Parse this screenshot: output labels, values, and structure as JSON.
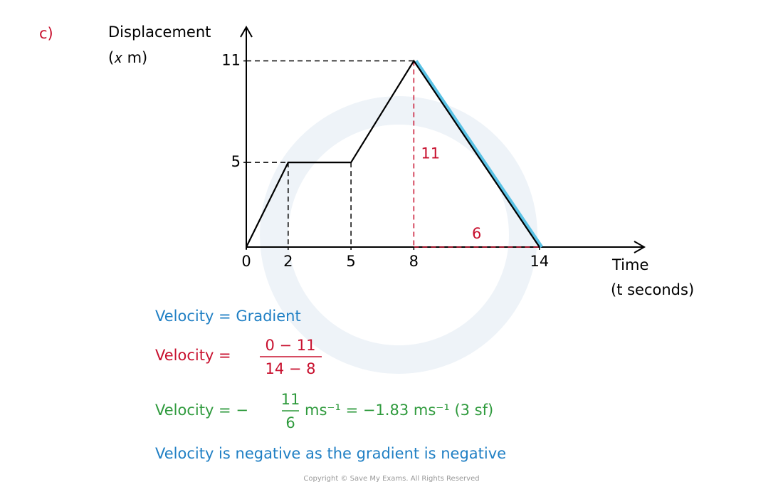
{
  "label": "c)",
  "chart_data": {
    "type": "line",
    "y_label": [
      "Displacement",
      "(𝑥 m)"
    ],
    "x_label": [
      "Time",
      "(t seconds)"
    ],
    "x": [
      0,
      2,
      5,
      8,
      14
    ],
    "series": [
      {
        "color": "#000000",
        "values": [
          0,
          5,
          5,
          11,
          0
        ]
      }
    ],
    "highlight_color": "#5bc3e6",
    "xlim": [
      0,
      19
    ],
    "ylim": [
      0,
      13
    ],
    "xticks": [
      0,
      2,
      5,
      8,
      14
    ],
    "yticks": [
      5,
      11
    ],
    "annotations": [
      {
        "text": "11",
        "color": "#c8102e"
      },
      {
        "text": "6",
        "color": "#c8102e"
      }
    ]
  },
  "working": [
    {
      "text": "Velocity = Gradient",
      "color": "#1f7fc4"
    },
    {
      "lhs": "Velocity =",
      "numerator": "0 − 11",
      "denominator": "14 − 8",
      "color": "#c8102e"
    },
    {
      "lhs": "Velocity = −",
      "numerator": "11",
      "denominator": "6",
      "rhs": "ms⁻¹ = −1.83 ms⁻¹ (3 sf)",
      "color": "#2e9a3c"
    },
    {
      "text": "Velocity is negative as the gradient is negative",
      "color": "#1f7fc4"
    }
  ],
  "copyright": "Copyright © Save My Exams. All Rights Reserved"
}
